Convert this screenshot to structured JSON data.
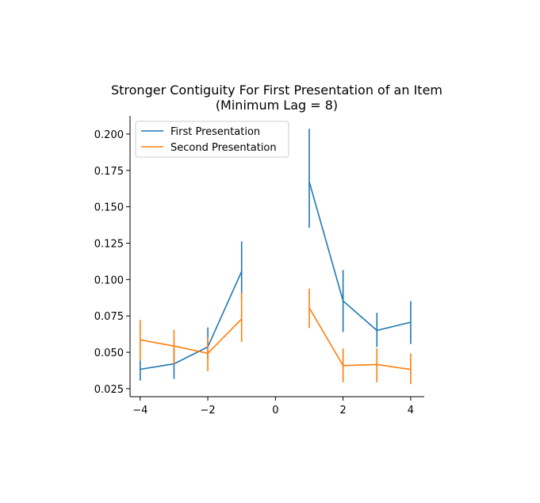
{
  "chart_data": {
    "type": "line",
    "title": "Stronger Contiguity For First Presentation of an Item",
    "subtitle": "(Minimum Lag = 8)",
    "xlabel": "",
    "ylabel": "",
    "xlim": [
      -4.3,
      4.4
    ],
    "ylim": [
      0.0195,
      0.2125
    ],
    "x_ticks": [
      -4,
      -2,
      0,
      2,
      4
    ],
    "x_tick_labels": [
      "−4",
      "−2",
      "0",
      "2",
      "4"
    ],
    "y_ticks": [
      0.025,
      0.05,
      0.075,
      0.1,
      0.125,
      0.15,
      0.175,
      0.2
    ],
    "y_tick_labels": [
      "0.025",
      "0.050",
      "0.075",
      "0.100",
      "0.125",
      "0.150",
      "0.175",
      "0.200"
    ],
    "grid": false,
    "legend_position": "upper-left",
    "series": [
      {
        "name": "First Presentation",
        "color": "#1f77b4",
        "segments": [
          {
            "x": [
              -4,
              -3,
              -2,
              -1
            ],
            "y": [
              0.0383,
              0.0421,
              0.0537,
              0.1056
            ],
            "err_low": [
              0.0306,
              0.0317,
              0.0455,
              0.0861
            ],
            "err_high": [
              0.0444,
              0.0527,
              0.0671,
              0.1262
            ]
          },
          {
            "x": [
              1,
              2,
              3,
              4
            ],
            "y": [
              0.1672,
              0.0853,
              0.065,
              0.0707
            ],
            "err_low": [
              0.1356,
              0.0639,
              0.0536,
              0.0557
            ],
            "err_high": [
              0.2036,
              0.1065,
              0.0772,
              0.0852
            ]
          }
        ]
      },
      {
        "name": "Second Presentation",
        "color": "#ff7f0e",
        "segments": [
          {
            "x": [
              -4,
              -3,
              -2,
              -1
            ],
            "y": [
              0.0586,
              0.0543,
              0.0493,
              0.0729
            ],
            "err_low": [
              0.0445,
              0.0418,
              0.037,
              0.0572
            ],
            "err_high": [
              0.0722,
              0.0655,
              0.0604,
              0.091
            ]
          },
          {
            "x": [
              1,
              2,
              3,
              4
            ],
            "y": [
              0.0806,
              0.0409,
              0.0416,
              0.0382
            ],
            "err_low": [
              0.0667,
              0.0293,
              0.0293,
              0.0281
            ],
            "err_high": [
              0.0937,
              0.0527,
              0.0527,
              0.0492
            ]
          }
        ]
      }
    ]
  }
}
